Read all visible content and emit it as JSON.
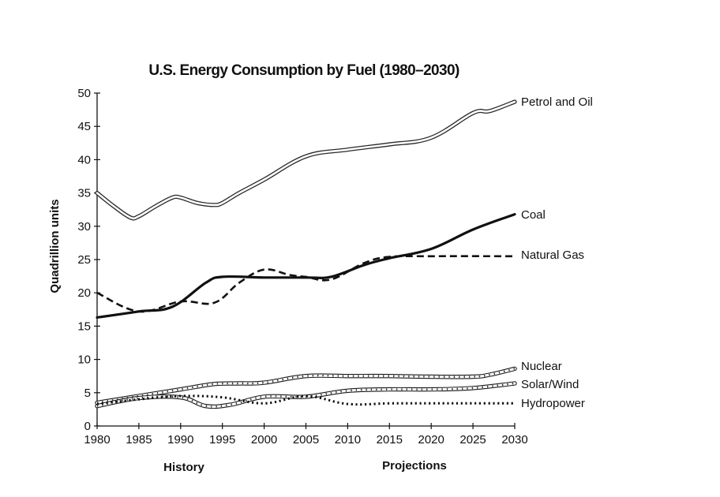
{
  "chart_data": {
    "type": "line",
    "title": "U.S. Energy Consumption by Fuel (1980–2030)",
    "ylabel": "Quadrillion units",
    "ylim": [
      0,
      50
    ],
    "yticks": [
      "0",
      "5",
      "10",
      "15",
      "20",
      "25",
      "30",
      "35",
      "40",
      "45",
      "50"
    ],
    "xlim": [
      1980,
      2030
    ],
    "xticks": [
      "1980",
      "1985",
      "1990",
      "1995",
      "2000",
      "2005",
      "2010",
      "2015",
      "2020",
      "2025",
      "2030"
    ],
    "sublabels": {
      "history": "History",
      "projections": "Projections"
    },
    "series": [
      {
        "name": "Petrol and Oil",
        "style": "double-hollow",
        "x": [
          1980,
          1982,
          1984,
          1985,
          1987,
          1989,
          1990,
          1992,
          1994,
          1995,
          1997,
          2000,
          2005,
          2010,
          2015,
          2020,
          2025,
          2027,
          2030
        ],
        "y": [
          35,
          33,
          31.3,
          31.5,
          33,
          34.3,
          34.3,
          33.5,
          33.2,
          33.5,
          35,
          37,
          40.5,
          41.5,
          42.3,
          43.3,
          47,
          47.3,
          48.7
        ]
      },
      {
        "name": "Coal",
        "style": "solid",
        "x": [
          1980,
          1985,
          1989,
          1993,
          1995,
          2000,
          2005,
          2008,
          2012,
          2015,
          2020,
          2025,
          2030
        ],
        "y": [
          16.3,
          17.2,
          17.9,
          21.5,
          22.4,
          22.3,
          22.3,
          22.4,
          24.2,
          25.2,
          26.6,
          29.5,
          31.8
        ]
      },
      {
        "name": "Natural Gas",
        "style": "dashed",
        "x": [
          1980,
          1985,
          1990,
          1994,
          1997,
          2000,
          2003,
          2005,
          2008,
          2012,
          2015,
          2020,
          2030
        ],
        "y": [
          20,
          17.2,
          18.7,
          18.5,
          21.5,
          23.5,
          22.7,
          22.4,
          22,
          24.5,
          25.4,
          25.5,
          25.5
        ]
      },
      {
        "name": "Nuclear",
        "style": "striped",
        "x": [
          1980,
          1985,
          1990,
          1994,
          1997,
          2000,
          2005,
          2010,
          2015,
          2020,
          2025,
          2027,
          2030
        ],
        "y": [
          3.5,
          4.5,
          5.5,
          6.3,
          6.4,
          6.5,
          7.5,
          7.5,
          7.5,
          7.4,
          7.4,
          7.7,
          8.6
        ]
      },
      {
        "name": "Solar/Wind",
        "style": "striped",
        "x": [
          1980,
          1985,
          1990,
          1993,
          1996,
          2000,
          2005,
          2010,
          2015,
          2020,
          2025,
          2030
        ],
        "y": [
          3.0,
          4.2,
          4.3,
          3.0,
          3.2,
          4.4,
          4.4,
          5.3,
          5.5,
          5.5,
          5.7,
          6.4
        ]
      },
      {
        "name": "Hydropower",
        "style": "dotted",
        "x": [
          1980,
          1985,
          1990,
          1995,
          2000,
          2005,
          2010,
          2015,
          2020,
          2025,
          2030
        ],
        "y": [
          3.3,
          4.0,
          4.5,
          4.3,
          3.4,
          4.5,
          3.3,
          3.4,
          3.4,
          3.4,
          3.4
        ]
      }
    ]
  }
}
